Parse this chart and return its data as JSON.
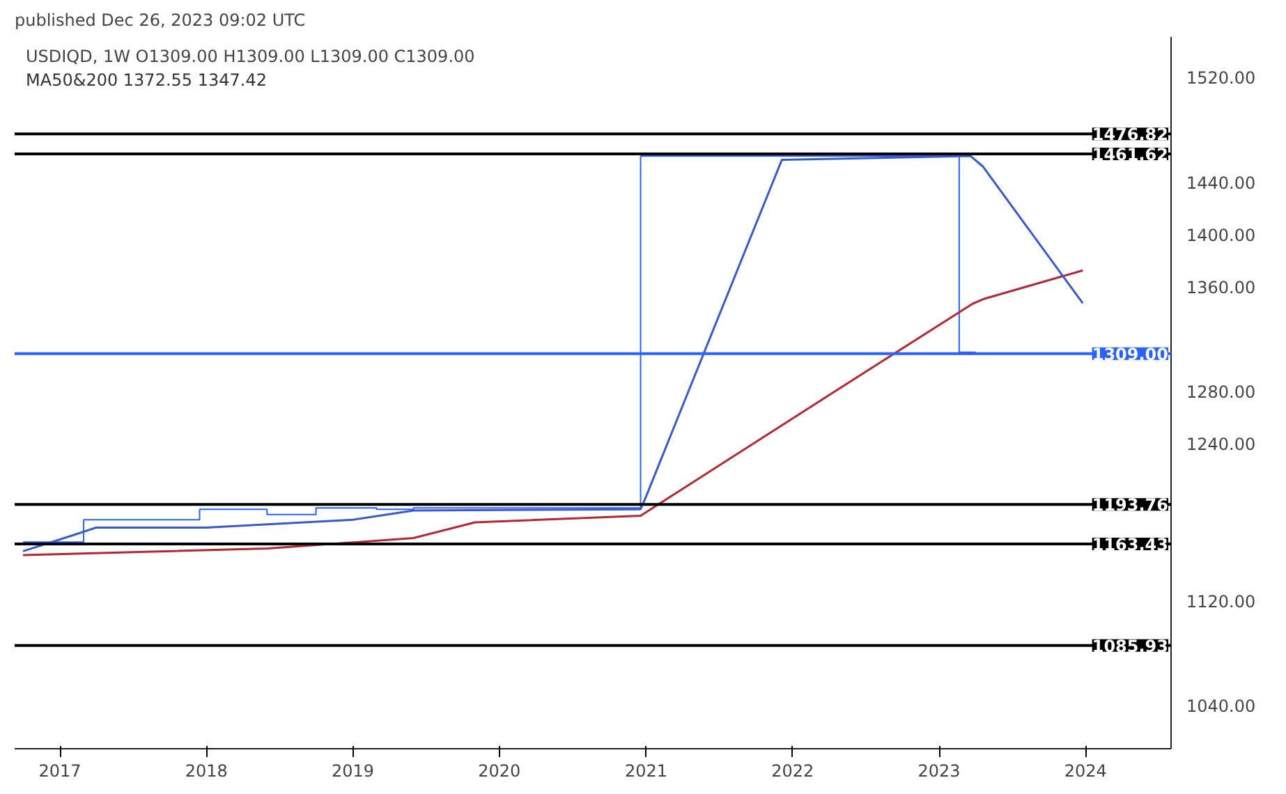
{
  "chart_data": {
    "type": "line",
    "title": "USDIQD, 1W",
    "annotations": [
      "published Dec 26, 2023 09:02 UTC",
      "O1309.00  H1309.00  L1309.00  C1309.00",
      "MA50&200  1372.55  1347.42"
    ],
    "series": [
      {
        "type": "step",
        "color": "#2962ff",
        "x": [
          "2016-10-01",
          "2017-03-01",
          "2017-12-15",
          "2018-06-01",
          "2018-10-01",
          "2019-03-01",
          "2019-06-01",
          "2020-12-18",
          "2023-02-20",
          "2023-04-01",
          "2023-12-25"
        ],
        "values": [
          1165,
          1182,
          1190,
          1186,
          1191,
          1190,
          1191,
          1460,
          1310,
          1309,
          1309
        ]
      },
      {
        "color": "#b22833",
        "x": [
          "2016-10-01",
          "2018-06-01",
          "2019-06-01",
          "2019-11-01",
          "2020-12-18",
          "2022-05-01",
          "2023-03-25",
          "2023-04-25",
          "2023-12-25"
        ],
        "values": [
          1155,
          1160,
          1168,
          1180,
          1185,
          1283,
          1347,
          1351,
          1372.55
        ]
      },
      {
        "color": "#3a5bc7",
        "x": [
          "2016-10-01",
          "2017-02-01",
          "2017-04-01",
          "2018-01-01",
          "2019-01-01",
          "2019-06-01",
          "2020-12-18",
          "2021-01-01",
          "2021-04-20",
          "2021-12-05",
          "2023-03-20",
          "2023-04-20",
          "2023-12-25"
        ],
        "values": [
          1158,
          1170,
          1176,
          1176,
          1182,
          1189,
          1190,
          1200,
          1283,
          1457,
          1460,
          1452,
          1347.42
        ]
      }
    ],
    "xlim": [
      "2016-09-10",
      "2024-08-01"
    ],
    "ylim": [
      1007,
      1551
    ],
    "xticks": [
      "2017",
      "2018",
      "2019",
      "2020",
      "2021",
      "2022",
      "2023",
      "2024"
    ],
    "yticks": [
      {
        "value": 1040,
        "label": "1040.00"
      },
      {
        "value": 1120,
        "label": "1120.00"
      },
      {
        "value": 1240,
        "label": "1240.00"
      },
      {
        "value": 1280,
        "label": "1280.00"
      },
      {
        "value": 1360,
        "label": "1360.00"
      },
      {
        "value": 1400,
        "label": "1400.00"
      },
      {
        "value": 1440,
        "label": "1440.00"
      },
      {
        "value": 1520,
        "label": "1520.00"
      }
    ],
    "ref_lines": [
      {
        "axis": "y",
        "value": 1476.82,
        "label": "1476.82",
        "color": "#000000"
      },
      {
        "axis": "y",
        "value": 1461.62,
        "label": "1461.62",
        "color": "#000000"
      },
      {
        "axis": "y",
        "value": 1309.0,
        "label": "1309.00",
        "color": "#2962ff"
      },
      {
        "axis": "y",
        "value": 1193.76,
        "label": "1193.76",
        "color": "#000000"
      },
      {
        "axis": "y",
        "value": 1163.43,
        "label": "1163.43",
        "color": "#000000"
      },
      {
        "axis": "y",
        "value": 1085.93,
        "label": "1085.93",
        "color": "#000000"
      }
    ],
    "grid": false
  }
}
